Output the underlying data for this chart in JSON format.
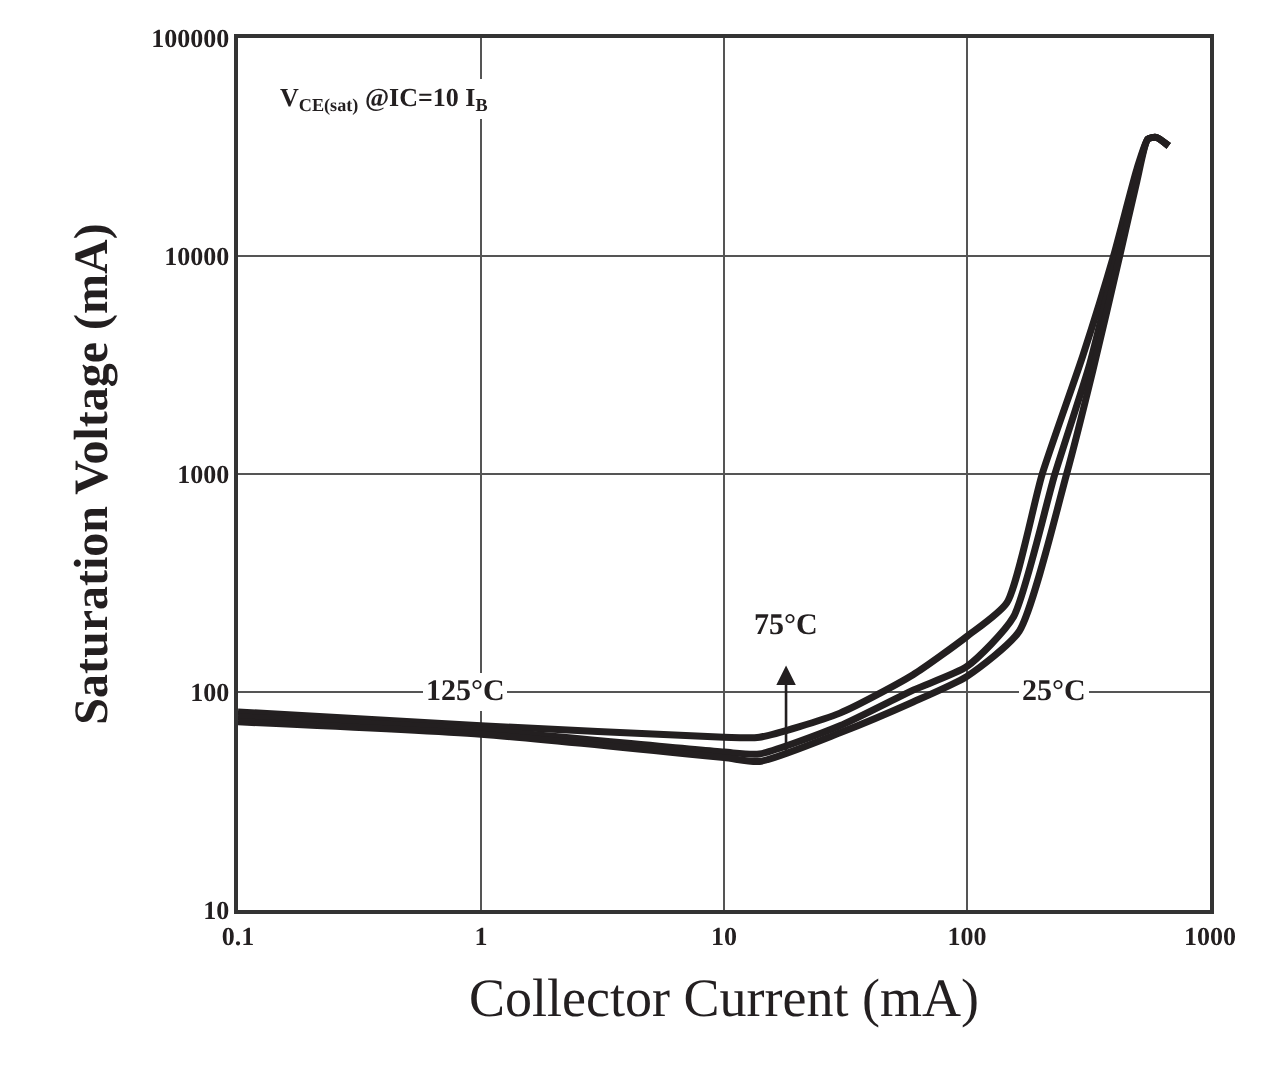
{
  "chart_data": {
    "type": "line",
    "xlabel": "Collector Current (mA)",
    "ylabel": "Saturation Voltage (mA)",
    "log": "xy",
    "grid": true,
    "marker": "none",
    "line_style": "solid",
    "xlim": [
      0.1,
      1000
    ],
    "ylim": [
      10,
      100000
    ],
    "xticks": [
      0.1,
      1,
      10,
      100,
      1000
    ],
    "yticks": [
      10,
      100,
      1000,
      10000,
      100000
    ],
    "series": [
      {
        "color": "#231f20",
        "x": [
          0.1,
          1,
          10,
          14,
          30,
          60,
          100,
          146,
          204,
          300,
          401,
          500,
          555,
          600,
          676
        ],
        "values": [
          81,
          70,
          62,
          62,
          80,
          120,
          180,
          257,
          1000,
          3500,
          10000,
          25000,
          34400,
          35000,
          32000
        ]
      },
      {
        "color": "#231f20",
        "x": [
          0.1,
          1,
          10,
          14,
          30,
          60,
          100,
          155,
          230,
          320,
          412,
          500,
          555,
          600,
          676
        ],
        "values": [
          77,
          67,
          53,
          52,
          70,
          102,
          131,
          220,
          1000,
          3200,
          10000,
          23500,
          34400,
          35000,
          32000
        ]
      },
      {
        "color": "#231f20",
        "x": [
          0.1,
          1,
          10,
          14,
          30,
          60,
          100,
          164,
          257,
          330,
          425,
          500,
          555,
          600,
          676
        ],
        "values": [
          73,
          64,
          50,
          48,
          65,
          90,
          118,
          190,
          1000,
          3000,
          10000,
          22000,
          34400,
          35000,
          32000
        ]
      }
    ],
    "annotations": [
      "V$_{CE(sat)}$ @IC=10 I$_{B}$",
      {
        "text": "125°C",
        "x": 0.86,
        "y": 100
      },
      {
        "text": "75°C",
        "x": 18,
        "y": 200
      },
      {
        "text": "25°C",
        "x": 226,
        "y": 100
      }
    ]
  }
}
